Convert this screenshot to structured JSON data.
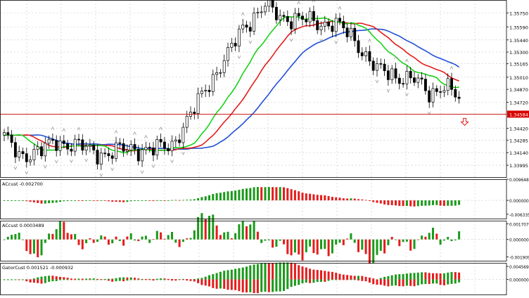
{
  "colors": {
    "background": "#ffffff",
    "grid": "#c8c8c8",
    "candle": "#000000",
    "alligator_jaw": "#1f4fd8",
    "alligator_teeth": "#e41c1c",
    "alligator_lips": "#19d219",
    "bar_up": "#1a9a1a",
    "bar_down": "#e41c1c",
    "price_line": "#c00000",
    "price_label_bg": "#d90000",
    "price_label_text": "#ffffff",
    "arrow": "#e41c1c",
    "fractal": "#9a9a9a"
  },
  "chart_data": [
    {
      "type": "candlestick",
      "panel": "price",
      "grid": true,
      "ylim": [
        1.3385,
        1.359
      ],
      "y_ticks": [
        "1.35750",
        "1.35590",
        "1.35440",
        "1.35300",
        "1.35165",
        "1.35010",
        "1.34870",
        "1.34720",
        "1.34584",
        "1.34420",
        "1.34285",
        "1.34140",
        "1.33995"
      ],
      "current_price": "1.34584",
      "current_price_value": 1.34584,
      "signal": "down-arrow",
      "fractal_marks": "grey-arrows-above-and-below-candles",
      "series": [
        {
          "indicator": "alligator-jaw",
          "color": "blue"
        },
        {
          "indicator": "alligator-teeth",
          "color": "red"
        },
        {
          "indicator": "alligator-lips",
          "color": "green"
        }
      ]
    },
    {
      "type": "bar",
      "panel": "indicator-1",
      "title": "ACcust -0.002700",
      "grid": true,
      "ylim": [
        -0.00863,
        0.00965
      ],
      "y_ticks": [
        "0.009648",
        "0.000000",
        "-0.006335"
      ],
      "bar_coloring": "green-up-red-down"
    },
    {
      "type": "bar",
      "panel": "indicator-2",
      "title": "ACcust 0.0003489",
      "grid": true,
      "ylim": [
        -0.0024,
        0.00205
      ],
      "y_ticks": [
        "0.0017072",
        "0.0000000",
        "-0.0019091"
      ],
      "bar_coloring": "green-up-red-down"
    },
    {
      "type": "bar",
      "panel": "indicator-3",
      "title": "GatorCust 0.001521 -0.000932",
      "grid": true,
      "ylim": [
        -0.0055,
        0.0058
      ],
      "y_ticks": [
        "0.004569",
        "0.000000"
      ],
      "bar_coloring": "green-up-red-down-mirrored"
    }
  ]
}
